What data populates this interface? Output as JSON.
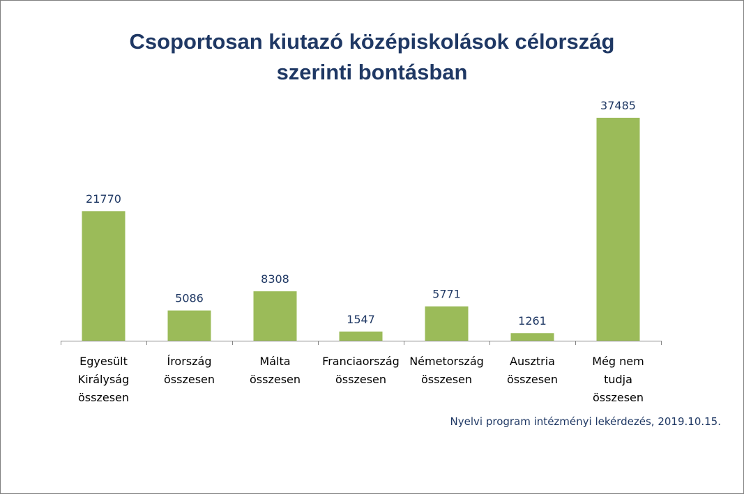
{
  "chart_data": {
    "type": "bar",
    "title_lines": [
      "Csoportosan kiutazó középiskolások célország",
      "szerinti bontásban"
    ],
    "categories": [
      [
        "Egyesült",
        "Királyság",
        "összesen"
      ],
      [
        "Írország",
        "összesen"
      ],
      [
        "Málta",
        "összesen"
      ],
      [
        "Franciaország",
        "összesen"
      ],
      [
        "Németország",
        "összesen"
      ],
      [
        "Ausztria",
        "összesen"
      ],
      [
        "Még nem",
        "tudja",
        "összesen"
      ]
    ],
    "values": [
      21770,
      5086,
      8308,
      1547,
      5771,
      1261,
      37485
    ],
    "value_labels": [
      "21770",
      "5086",
      "8308",
      "1547",
      "5771",
      "1261",
      "37485"
    ],
    "ylim": [
      0,
      37485
    ],
    "bar_color": "#9bbb59",
    "label_color": "#1f3864",
    "grid": false,
    "legend": "none"
  },
  "source_note": "Nyelvi program intézményi lekérdezés, 2019.10.15."
}
